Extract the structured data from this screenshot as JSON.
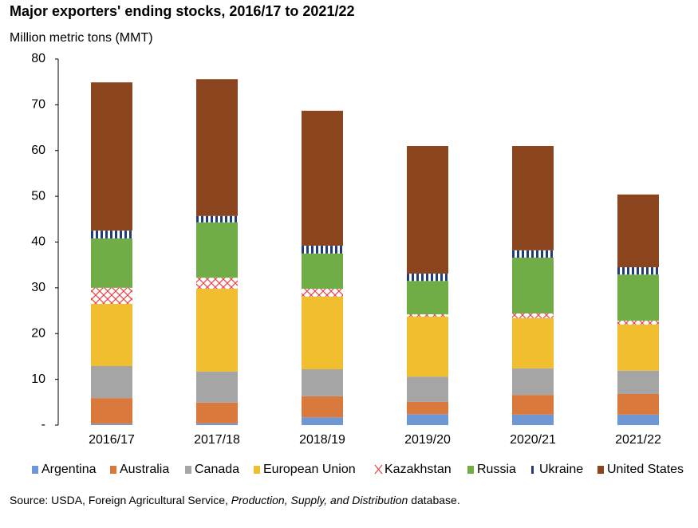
{
  "chart_data": {
    "type": "stacked-bar",
    "title": "Major exporters' ending stocks, 2016/17 to 2021/22",
    "y_label": "Million metric tons (MMT)",
    "categories": [
      "2016/17",
      "2017/18",
      "2018/19",
      "2019/20",
      "2020/21",
      "2021/22"
    ],
    "series": [
      {
        "name": "Argentina",
        "color": "#6f97d3",
        "pattern": "solid",
        "values": [
          0.3,
          0.4,
          1.7,
          2.4,
          2.3,
          2.3
        ]
      },
      {
        "name": "Australia",
        "color": "#d9793b",
        "pattern": "solid",
        "values": [
          5.6,
          4.5,
          4.6,
          2.7,
          4.3,
          4.5
        ]
      },
      {
        "name": "Canada",
        "color": "#a5a5a5",
        "pattern": "solid",
        "values": [
          7.0,
          6.8,
          5.9,
          5.5,
          5.8,
          5.1
        ]
      },
      {
        "name": "European Union",
        "color": "#f0be2e",
        "pattern": "solid",
        "values": [
          13.6,
          18.1,
          15.9,
          13.1,
          11.0,
          10.1
        ]
      },
      {
        "name": "Kazakhstan",
        "color": "#e8474a",
        "pattern": "cross",
        "values": [
          3.5,
          2.4,
          1.7,
          0.5,
          1.0,
          0.8
        ]
      },
      {
        "name": "Russia",
        "color": "#70ad47",
        "pattern": "solid",
        "values": [
          10.8,
          12.1,
          7.7,
          7.3,
          12.2,
          10.1
        ]
      },
      {
        "name": "Ukraine",
        "color": "#203c78",
        "pattern": "stripes",
        "values": [
          1.7,
          1.4,
          1.7,
          1.6,
          1.6,
          1.6
        ]
      },
      {
        "name": "United States",
        "color": "#8b451e",
        "pattern": "solid",
        "values": [
          32.4,
          29.9,
          29.5,
          27.9,
          22.8,
          15.9
        ]
      }
    ],
    "ylim": [
      0,
      80
    ],
    "yticks": [
      {
        "value": 0,
        "label": "-"
      },
      10,
      20,
      30,
      40,
      50,
      60,
      70,
      80
    ],
    "source": [
      "Source: USDA, Foreign Agricultural Service, ",
      "Production, Supply, and Distribution",
      " database."
    ]
  }
}
